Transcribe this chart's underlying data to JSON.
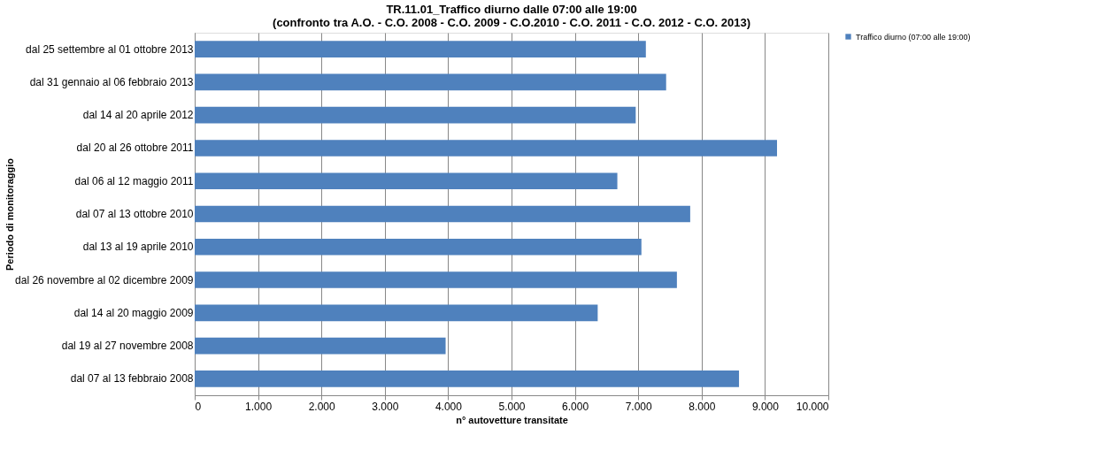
{
  "chart_data": {
    "type": "bar",
    "orientation": "horizontal",
    "title": [
      "TR.11.01_Traffico diurno dalle 07:00 alle 19:00",
      "(confronto tra A.O. - C.O. 2008 - C.O. 2009 - C.O.2010 - C.O. 2011 - C.O. 2012 - C.O. 2013)"
    ],
    "xlabel": "n° autovetture transitate",
    "ylabel": "Periodo di monitoraggio",
    "categories": [
      "dal 25 settembre al 01 ottobre 2013",
      "dal 31 gennaio al 06 febbraio 2013",
      "dal 14 al 20 aprile 2012",
      "dal 20 al 26 ottobre 2011",
      "dal 06 al 12 maggio 2011",
      "dal 07 al 13 ottobre 2010",
      "dal 13 al 19 aprile 2010",
      "dal 26 novembre al 02 dicembre 2009",
      "dal 14 al 20 maggio 2009",
      "dal 19 al 27 novembre 2008",
      "dal 07 al 13 febbraio 2008"
    ],
    "series": [
      {
        "name": "Traffico diurno (07:00 alle 19:00)",
        "color": "#4f81bd",
        "values": [
          7120,
          7440,
          6960,
          9190,
          6670,
          7820,
          7050,
          7610,
          6360,
          3960,
          8590
        ]
      }
    ],
    "xlim": [
      0,
      10000
    ],
    "xticks": [
      {
        "value": 0,
        "label": "0"
      },
      {
        "value": 1000,
        "label": "1.000"
      },
      {
        "value": 2000,
        "label": "2.000"
      },
      {
        "value": 3000,
        "label": "3.000"
      },
      {
        "value": 4000,
        "label": "4.000"
      },
      {
        "value": 5000,
        "label": "5.000"
      },
      {
        "value": 6000,
        "label": "6.000"
      },
      {
        "value": 7000,
        "label": "7.000"
      },
      {
        "value": 8000,
        "label": "8.000"
      },
      {
        "value": 9000,
        "label": "9.000"
      },
      {
        "value": 10000,
        "label": "10.000"
      }
    ],
    "grid": "x",
    "legend": "right"
  }
}
